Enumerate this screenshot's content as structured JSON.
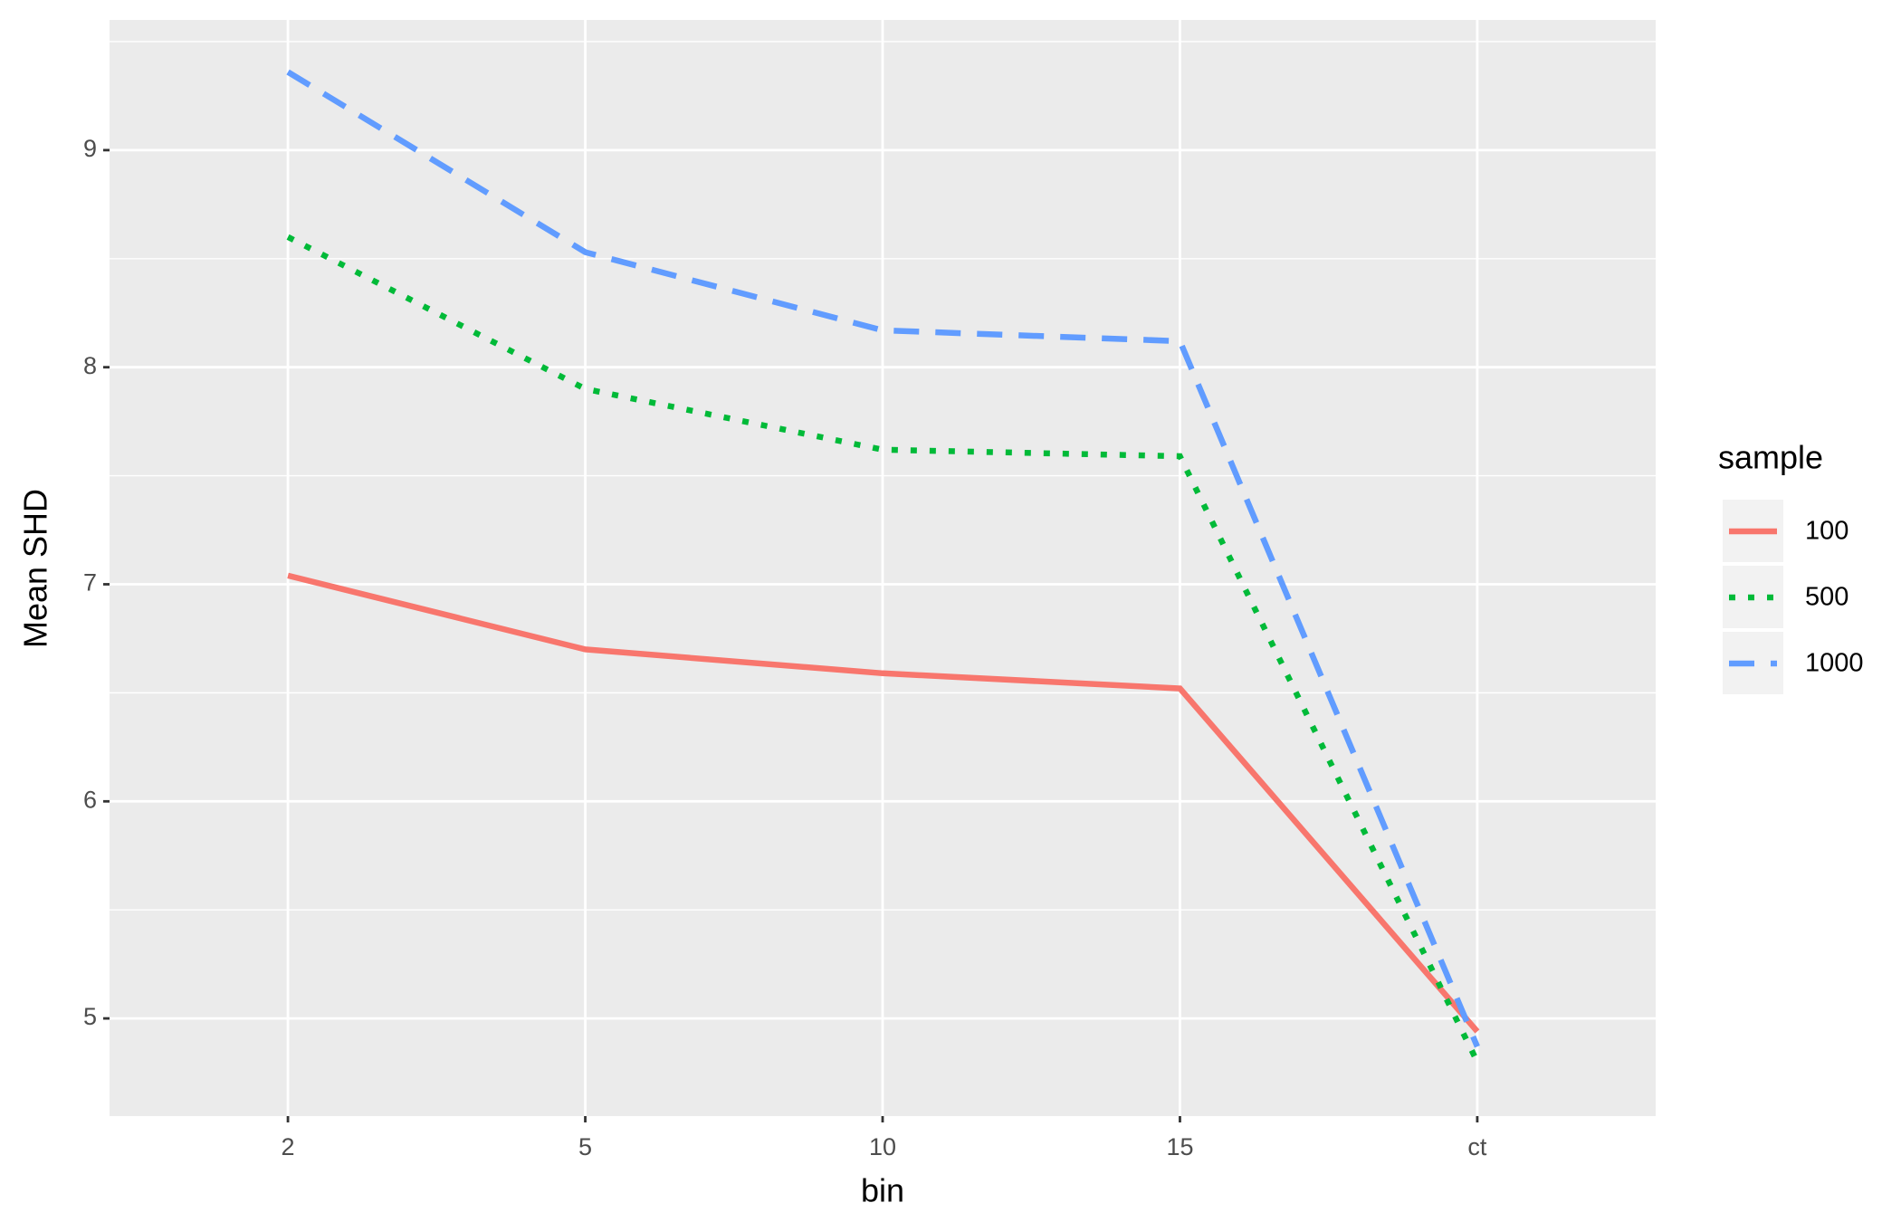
{
  "chart_data": {
    "type": "line",
    "x_label": "bin",
    "y_label": "Mean SHD",
    "categories": [
      "2",
      "5",
      "10",
      "15",
      "ct"
    ],
    "series": [
      {
        "name": "100",
        "color": "#f8766d",
        "dash": "solid",
        "values": [
          7.04,
          6.7,
          6.59,
          6.52,
          4.94
        ]
      },
      {
        "name": "500",
        "color": "#00ba38",
        "dash": "dotted",
        "values": [
          8.6,
          7.9,
          7.62,
          7.59,
          4.8
        ]
      },
      {
        "name": "1000",
        "color": "#619cff",
        "dash": "dashed",
        "values": [
          9.36,
          8.53,
          8.17,
          8.12,
          4.87
        ]
      }
    ],
    "ylim": [
      4.55,
      9.6
    ],
    "yticks": [
      5,
      6,
      7,
      8,
      9
    ],
    "grid": true,
    "legend_title": "sample",
    "legend_position": "right"
  }
}
